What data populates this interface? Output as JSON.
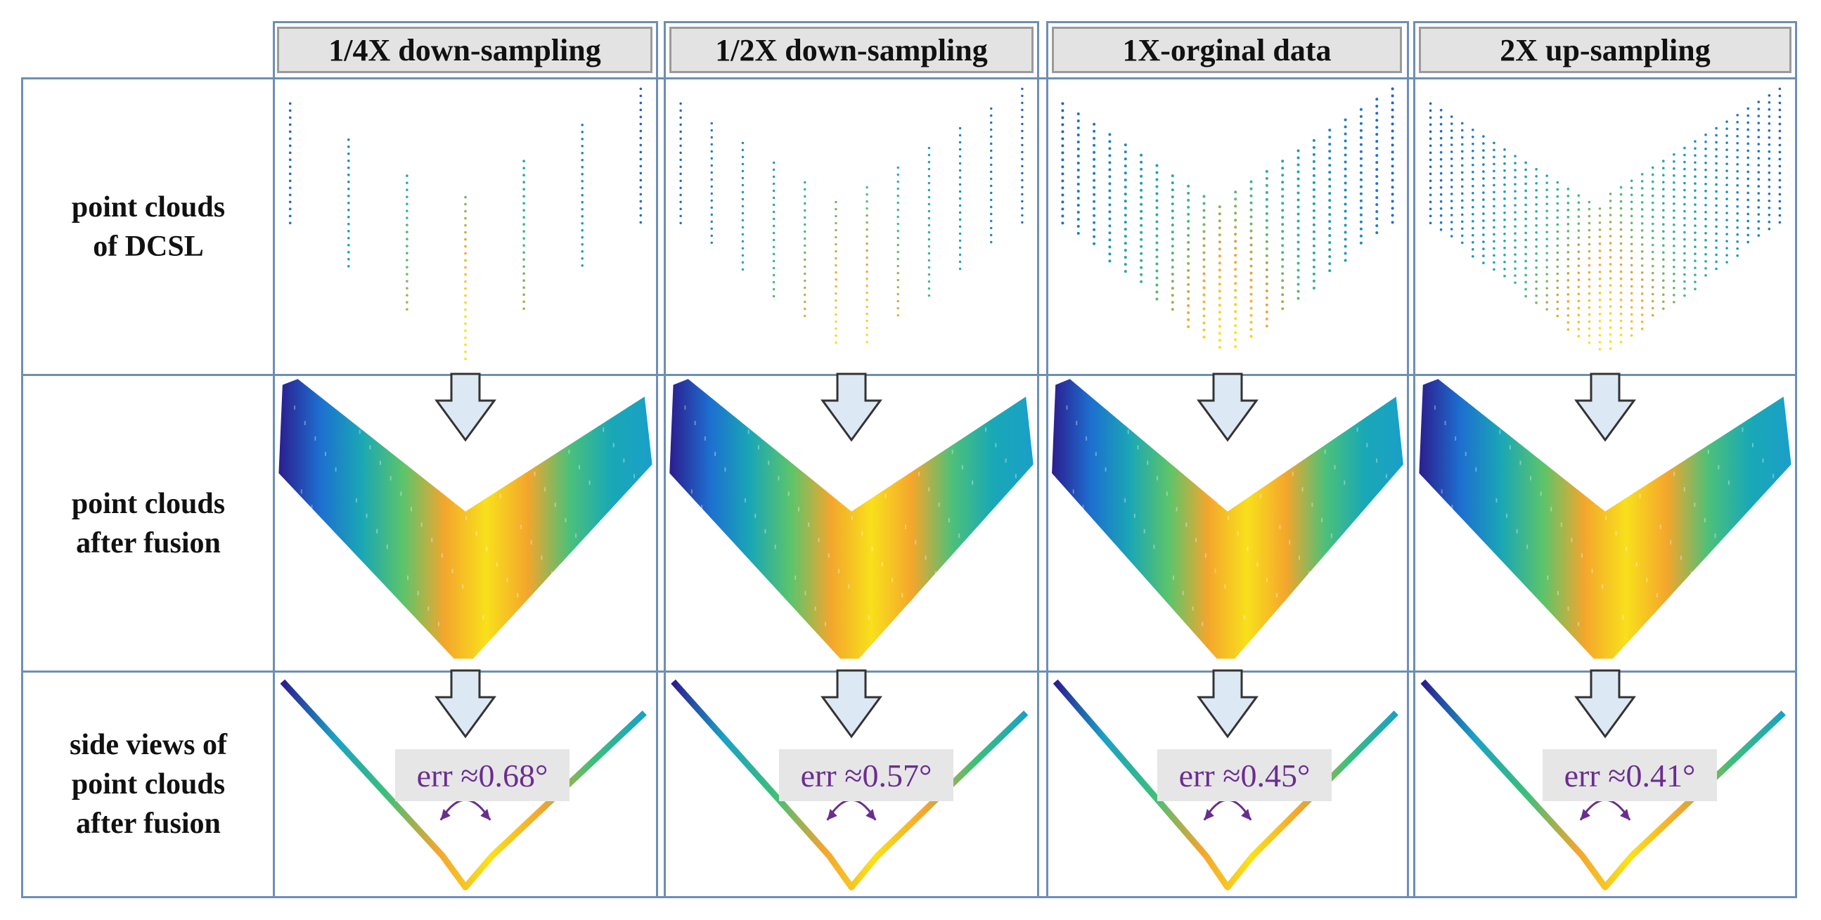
{
  "columns": [
    {
      "label": "1/4X down-sampling",
      "err": "err ≈0.68°"
    },
    {
      "label": "1/2X down-sampling",
      "err": "err ≈0.57°"
    },
    {
      "label": "1X-orginal data",
      "err": "err ≈0.45°"
    },
    {
      "label": "2X up-sampling",
      "err": "err ≈0.41°"
    }
  ],
  "rows": [
    {
      "line1": "point clouds",
      "line2": "of DCSL"
    },
    {
      "line1": "point clouds",
      "line2": "after fusion"
    },
    {
      "line1": "side views of",
      "line2": "point clouds",
      "line3": "after fusion"
    }
  ],
  "colors": {
    "border": "#6d8fb3",
    "arrow_fill": "#dce9f5",
    "err_text": "#6a2d90",
    "gradient": [
      "#2a1c8f",
      "#1f6fd1",
      "#17a2b8",
      "#3cbf7a",
      "#f3a530",
      "#f9e21a"
    ]
  }
}
